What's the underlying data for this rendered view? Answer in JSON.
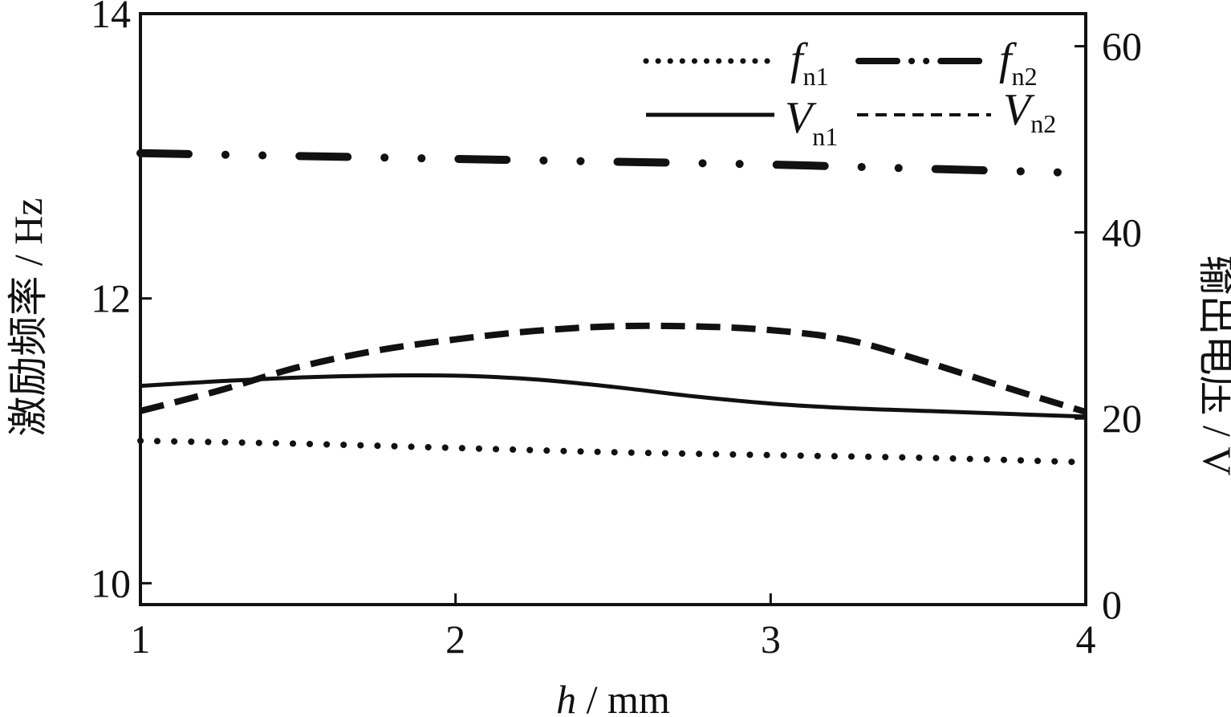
{
  "chart_data": {
    "type": "line",
    "x_axis": {
      "label_var": "h",
      "label_unit": " / mm",
      "range": [
        1,
        4
      ],
      "ticks": [
        "1",
        "2",
        "3",
        "4"
      ]
    },
    "y_left": {
      "label": "激励频率 / Hz",
      "range": [
        9.85,
        14
      ],
      "ticks": [
        "10",
        "12",
        "14"
      ]
    },
    "y_right": {
      "label": "输出电压 / V",
      "range": [
        0,
        63.5
      ],
      "ticks": [
        "0",
        "20",
        "40",
        "60"
      ]
    },
    "series": [
      {
        "name": "f",
        "name_sub": "n1",
        "axis": "left",
        "style": "dotted",
        "x": [
          1.0,
          1.5,
          2.0,
          2.5,
          3.0,
          3.5,
          4.0
        ],
        "y": [
          11.0,
          10.98,
          10.95,
          10.92,
          10.9,
          10.88,
          10.85
        ]
      },
      {
        "name": "f",
        "name_sub": "n2",
        "axis": "left",
        "style": "dash-dot-dot",
        "x": [
          1.0,
          1.5,
          2.0,
          2.5,
          3.0,
          3.5,
          4.0
        ],
        "y": [
          13.02,
          13.0,
          12.98,
          12.96,
          12.94,
          12.91,
          12.88
        ]
      },
      {
        "name": "V",
        "name_sub": "n1",
        "axis": "right",
        "style": "solid",
        "x": [
          1.0,
          1.25,
          1.5,
          1.75,
          2.0,
          2.25,
          2.5,
          2.75,
          3.0,
          3.25,
          3.5,
          3.75,
          4.0
        ],
        "y": [
          23.5,
          24.0,
          24.4,
          24.6,
          24.6,
          24.2,
          23.4,
          22.4,
          21.6,
          21.1,
          20.8,
          20.5,
          20.2
        ]
      },
      {
        "name": "V",
        "name_sub": "n2",
        "axis": "right",
        "style": "dashed",
        "x": [
          1.0,
          1.25,
          1.5,
          1.75,
          2.0,
          2.25,
          2.5,
          2.75,
          3.0,
          3.25,
          3.5,
          3.75,
          4.0
        ],
        "y": [
          20.8,
          23.0,
          25.5,
          27.3,
          28.5,
          29.4,
          29.9,
          29.9,
          29.5,
          28.4,
          26.0,
          23.3,
          20.7
        ]
      }
    ],
    "legend_position": "top-right",
    "grid": false
  }
}
